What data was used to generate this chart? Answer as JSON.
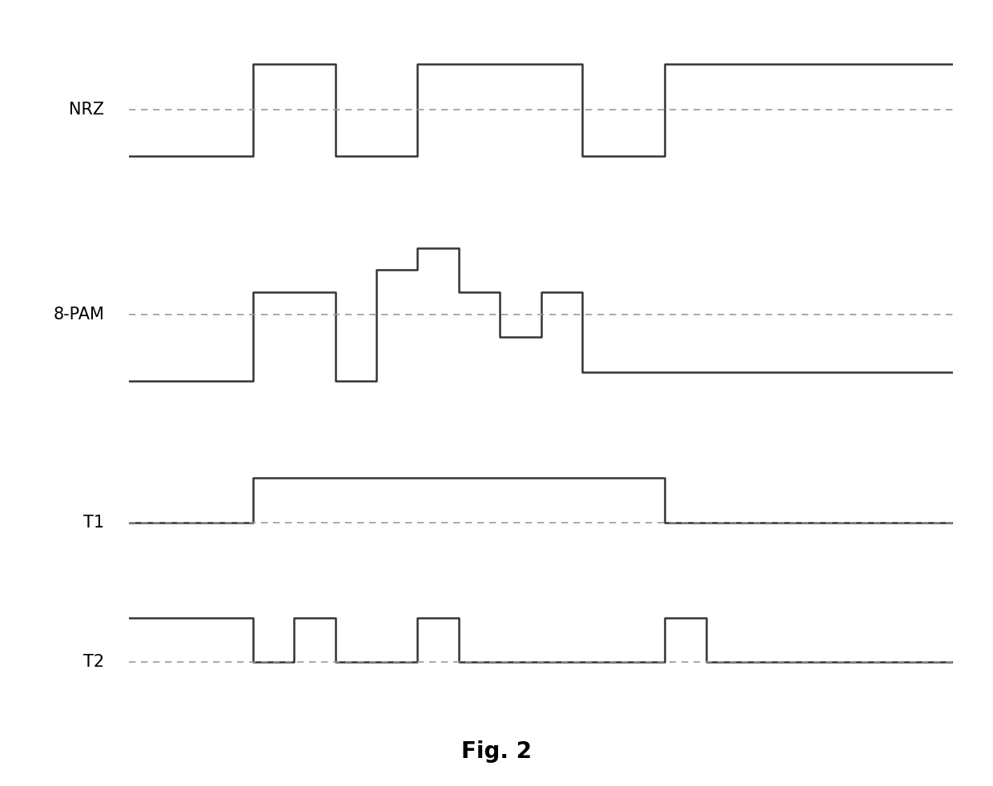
{
  "background_color": "#ffffff",
  "fig_title": "Fig. 2",
  "fig_title_fontsize": 20,
  "fig_title_fontweight": "bold",
  "nrz_label": "NRZ",
  "pam_label": "8-PAM",
  "t1_label": "T1",
  "t2_label": "T2",
  "label_fontsize": 15,
  "signal_color": "#333333",
  "dash_color": "#999999",
  "line_width": 1.8,
  "dash_linewidth": 1.2,
  "nrz_t": [
    0,
    1.5,
    1.5,
    2.5,
    2.5,
    3.5,
    3.5,
    5.5,
    5.5,
    6.5,
    6.5,
    10.0
  ],
  "nrz_v": [
    -1,
    -1,
    1,
    1,
    -1,
    -1,
    1,
    1,
    -1,
    -1,
    -1,
    -1
  ],
  "pam_t": [
    0,
    1.5,
    1.5,
    2.5,
    2.5,
    3.0,
    3.0,
    3.5,
    3.5,
    4.0,
    4.0,
    4.5,
    4.5,
    5.0,
    5.0,
    5.5,
    5.5,
    6.5,
    6.5,
    10.0
  ],
  "pam_v": [
    -1.5,
    -1.5,
    0.5,
    0.5,
    -1.5,
    -1.5,
    1.0,
    1.0,
    1.5,
    1.5,
    0.5,
    0.5,
    -0.5,
    -0.5,
    0.5,
    0.5,
    -1.3,
    -1.3,
    -1.3,
    -1.3
  ],
  "t1_t": [
    0,
    1.5,
    1.5,
    2.5,
    2.5,
    3.5,
    3.5,
    6.5,
    6.5,
    10.0
  ],
  "t1_v": [
    0,
    0,
    1,
    1,
    1,
    1,
    1,
    1,
    0,
    0
  ],
  "t2_t": [
    0,
    1.5,
    1.5,
    2.0,
    2.0,
    2.5,
    2.5,
    3.5,
    3.5,
    4.0,
    4.0,
    6.5,
    6.5,
    7.0,
    7.0,
    10.0
  ],
  "t2_v": [
    1,
    1,
    0,
    0,
    1,
    1,
    0,
    0,
    1,
    1,
    0,
    0,
    1,
    1,
    0,
    0
  ]
}
